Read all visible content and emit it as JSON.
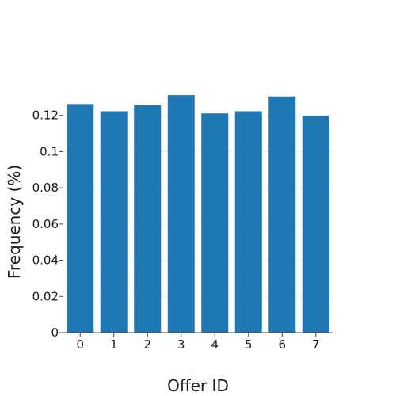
{
  "chart_data": {
    "type": "bar",
    "categories": [
      "0",
      "1",
      "2",
      "3",
      "4",
      "5",
      "6",
      "7"
    ],
    "values": [
      0.1263,
      0.1223,
      0.1256,
      0.1312,
      0.1211,
      0.1223,
      0.1305,
      0.1197
    ],
    "xlabel": "Offer ID",
    "ylabel": "Frequency (%)",
    "ylim": [
      0,
      0.14
    ],
    "yticks": [
      0,
      0.02,
      0.04,
      0.06,
      0.08,
      0.1,
      0.12
    ],
    "ytick_labels": [
      "0",
      "0.02",
      "0.04",
      "0.06",
      "0.08",
      "0.1",
      "0.12"
    ],
    "grid": true,
    "colors": {
      "bar": "#1f77b4",
      "grid": "#eeeeee",
      "axis": "#444444"
    }
  }
}
